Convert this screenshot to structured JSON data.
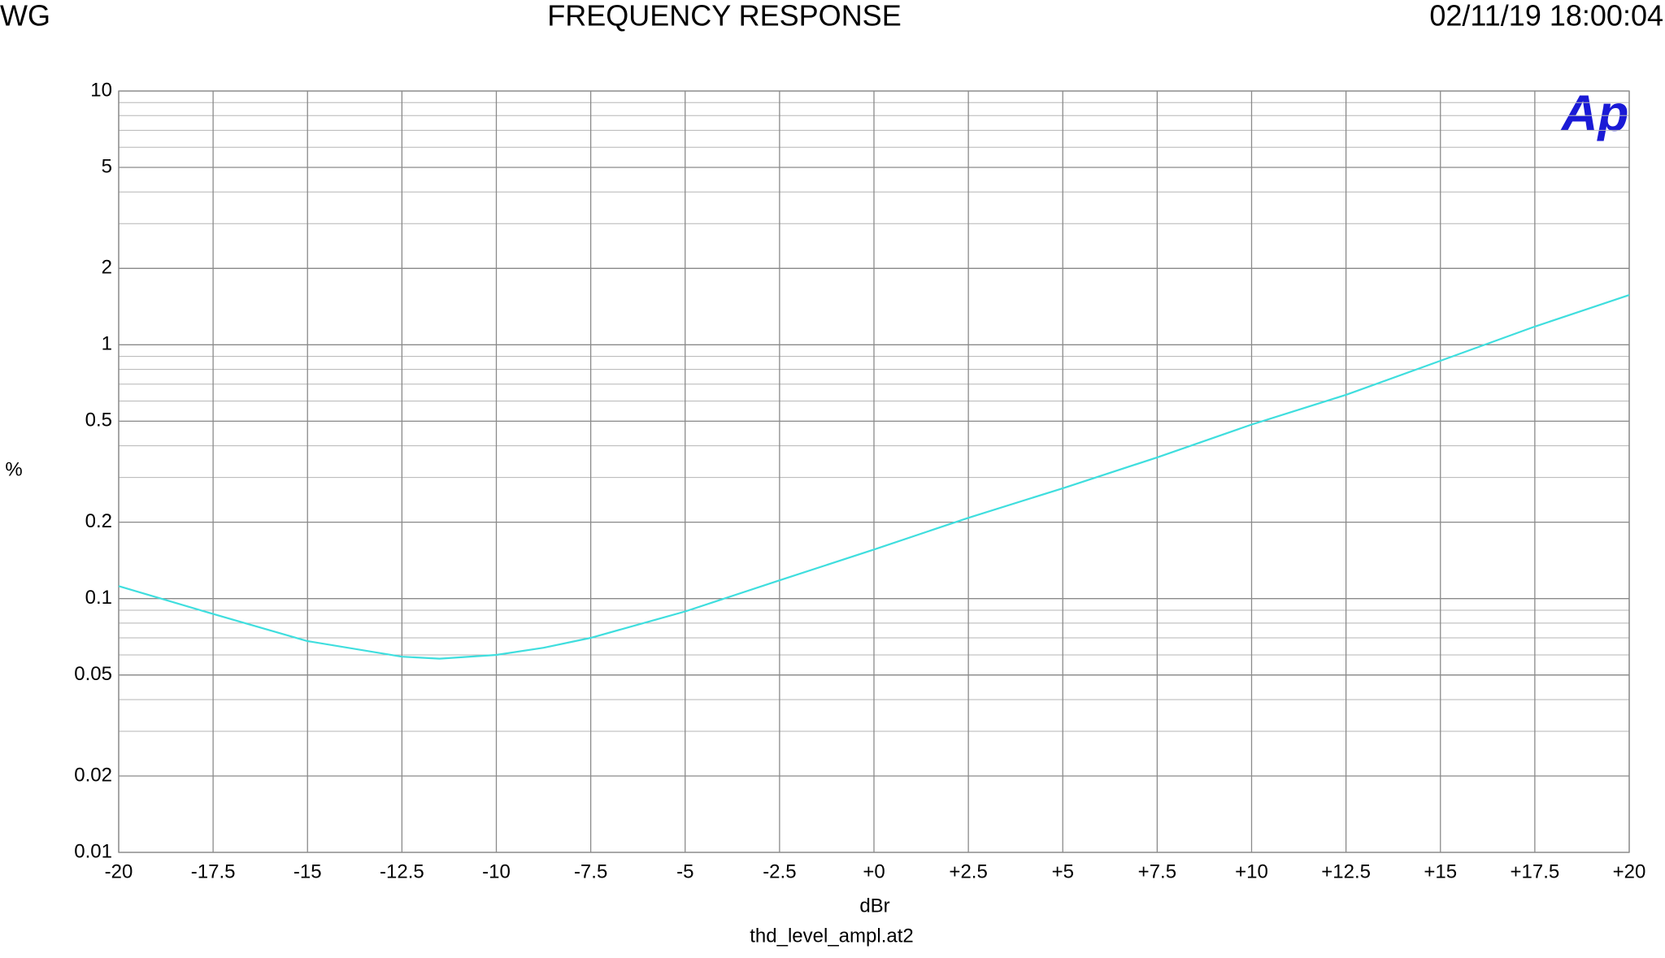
{
  "chart_data": {
    "type": "line",
    "header_left": "WG",
    "title": "FREQUENCY RESPONSE",
    "header_right": "02/11/19 18:00:04",
    "logo": "Ap",
    "ylabel": "%",
    "xlabel": "dBr",
    "footer": "thd_level_ampl.at2",
    "x": [
      -20,
      -17.5,
      -15,
      -12.5,
      -11.5,
      -10,
      -8.75,
      -7.5,
      -5,
      -2.5,
      0,
      2.5,
      5,
      7.5,
      10,
      12.5,
      15,
      17.5,
      20
    ],
    "values": [
      0.112,
      0.087,
      0.068,
      0.059,
      0.058,
      0.06,
      0.064,
      0.07,
      0.089,
      0.118,
      0.156,
      0.208,
      0.272,
      0.36,
      0.485,
      0.635,
      0.865,
      1.18,
      1.57
    ],
    "color": "#3fdede",
    "xlim": [
      -20,
      20
    ],
    "xticks": [
      -20,
      -17.5,
      -15,
      -12.5,
      -10,
      -7.5,
      -5,
      -2.5,
      {
        "value": 0,
        "label": "+0"
      },
      {
        "value": 2.5,
        "label": "+2.5"
      },
      {
        "value": 5,
        "label": "+5"
      },
      {
        "value": 7.5,
        "label": "+7.5"
      },
      {
        "value": 10,
        "label": "+10"
      },
      {
        "value": 12.5,
        "label": "+12.5"
      },
      {
        "value": 15,
        "label": "+15"
      },
      {
        "value": 17.5,
        "label": "+17.5"
      },
      {
        "value": 20,
        "label": "+20"
      }
    ],
    "ylim": [
      0.01,
      10
    ],
    "yticks": [
      0.01,
      0.02,
      0.05,
      0.1,
      0.2,
      0.5,
      1,
      2,
      5,
      10
    ],
    "log_y": true,
    "grid": true
  }
}
